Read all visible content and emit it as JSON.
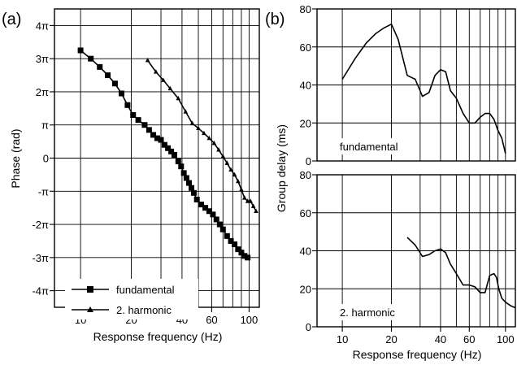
{
  "chart_data": [
    {
      "type": "line",
      "panel_label": "(a)",
      "xlabel": "Response frequency (Hz)",
      "ylabel": "Phase (rad)",
      "xscale": "log",
      "xlim": [
        7,
        115
      ],
      "ylim": [
        -4.5,
        4.5
      ],
      "y_unit": "pi rad",
      "grid": true,
      "x_grid": [
        10,
        20,
        30,
        40,
        50,
        60,
        70,
        80,
        90,
        100
      ],
      "x_ticks": [
        {
          "v": 10,
          "label": "10"
        },
        {
          "v": 20,
          "label": "20"
        },
        {
          "v": 40,
          "label": "40"
        },
        {
          "v": 60,
          "label": "60"
        },
        {
          "v": 100,
          "label": "100"
        }
      ],
      "y_ticks": [
        {
          "v": 4,
          "label": "4π"
        },
        {
          "v": 3,
          "label": "3π"
        },
        {
          "v": 2,
          "label": "2π"
        },
        {
          "v": 1,
          "label": "π"
        },
        {
          "v": 0,
          "label": "0"
        },
        {
          "v": -1,
          "label": "-π"
        },
        {
          "v": -2,
          "label": "-2π"
        },
        {
          "v": -3,
          "label": "-3π"
        },
        {
          "v": -4,
          "label": "-4π"
        }
      ],
      "legend_position": "bottom-left",
      "series": [
        {
          "name": "fundamental",
          "marker": "square",
          "x": [
            10,
            11.5,
            13,
            14.5,
            16,
            17.5,
            19,
            20.5,
            22,
            24,
            25.5,
            27,
            28.5,
            30,
            31.5,
            33,
            34.5,
            36,
            38,
            39.5,
            41,
            42.5,
            44,
            45.5,
            47,
            49,
            52,
            55,
            58,
            61,
            64,
            67,
            70,
            74,
            78,
            82,
            86,
            90,
            94,
            98
          ],
          "y": [
            3.25,
            3.0,
            2.75,
            2.5,
            2.25,
            1.95,
            1.6,
            1.3,
            1.15,
            1.0,
            0.85,
            0.7,
            0.6,
            0.55,
            0.4,
            0.3,
            0.2,
            0.1,
            -0.1,
            -0.25,
            -0.45,
            -0.6,
            -0.75,
            -0.9,
            -1.05,
            -1.25,
            -1.4,
            -1.5,
            -1.6,
            -1.7,
            -1.85,
            -2.0,
            -2.15,
            -2.35,
            -2.5,
            -2.6,
            -2.75,
            -2.85,
            -2.95,
            -3.0
          ]
        },
        {
          "name": "2. harmonic",
          "marker": "triangle",
          "x": [
            25,
            28,
            31,
            34,
            38,
            42,
            46,
            50,
            54,
            58,
            62,
            66,
            70,
            74,
            78,
            82,
            86,
            90,
            94,
            98,
            102,
            106,
            110
          ],
          "y": [
            2.95,
            2.6,
            2.35,
            2.1,
            1.8,
            1.4,
            1.05,
            0.9,
            0.75,
            0.6,
            0.45,
            0.25,
            0.05,
            -0.15,
            -0.35,
            -0.5,
            -0.7,
            -0.95,
            -1.2,
            -1.3,
            -1.3,
            -1.45,
            -1.6
          ]
        }
      ]
    },
    {
      "type": "line",
      "panel_label": "(b)",
      "xlabel": "",
      "ylabel": "",
      "xscale": "log",
      "xlim": [
        7,
        115
      ],
      "ylim": [
        0,
        80
      ],
      "grid": true,
      "x_grid": [
        10,
        20,
        30,
        40,
        50,
        60,
        70,
        80,
        90,
        100
      ],
      "y_ticks": [
        {
          "v": 0,
          "label": "0"
        },
        {
          "v": 20,
          "label": "20"
        },
        {
          "v": 40,
          "label": "40"
        },
        {
          "v": 60,
          "label": "60"
        },
        {
          "v": 80,
          "label": "80"
        }
      ],
      "annotation": "fundamental",
      "series": [
        {
          "name": "fundamental",
          "x": [
            10,
            12,
            14,
            16,
            18,
            20,
            22,
            25,
            28,
            31,
            34,
            37,
            40,
            43,
            46,
            50,
            55,
            60,
            65,
            70,
            75,
            80,
            85,
            90,
            95,
            100
          ],
          "y": [
            43,
            54,
            62,
            67,
            70,
            72,
            64,
            45,
            43,
            34,
            36,
            45,
            48,
            47,
            37,
            33,
            25,
            20,
            20,
            23,
            25,
            25,
            22,
            16,
            12,
            4
          ]
        }
      ]
    },
    {
      "type": "line",
      "panel_label": "",
      "xlabel": "Response frequency (Hz)",
      "ylabel": "Group delay (ms)",
      "xscale": "log",
      "xlim": [
        7,
        115
      ],
      "ylim": [
        0,
        80
      ],
      "grid": true,
      "x_grid": [
        10,
        20,
        30,
        40,
        50,
        60,
        70,
        80,
        90,
        100
      ],
      "x_ticks": [
        {
          "v": 10,
          "label": "10"
        },
        {
          "v": 20,
          "label": "20"
        },
        {
          "v": 40,
          "label": "40"
        },
        {
          "v": 60,
          "label": "60"
        },
        {
          "v": 100,
          "label": "100"
        }
      ],
      "y_ticks": [
        {
          "v": 0,
          "label": "0"
        },
        {
          "v": 20,
          "label": "20"
        },
        {
          "v": 40,
          "label": "40"
        },
        {
          "v": 60,
          "label": "60"
        },
        {
          "v": 80,
          "label": "80"
        }
      ],
      "annotation": "2. harmonic",
      "series": [
        {
          "name": "2. harmonic",
          "x": [
            25,
            28,
            31,
            34,
            37,
            40,
            43,
            46,
            50,
            55,
            60,
            65,
            70,
            75,
            80,
            85,
            88,
            91,
            95,
            100,
            108,
            115
          ],
          "y": [
            47,
            43,
            37,
            38,
            40,
            41,
            39,
            33,
            28,
            22,
            22,
            21,
            18,
            18,
            27,
            28,
            26,
            20,
            15,
            13,
            11,
            10
          ]
        }
      ]
    }
  ]
}
